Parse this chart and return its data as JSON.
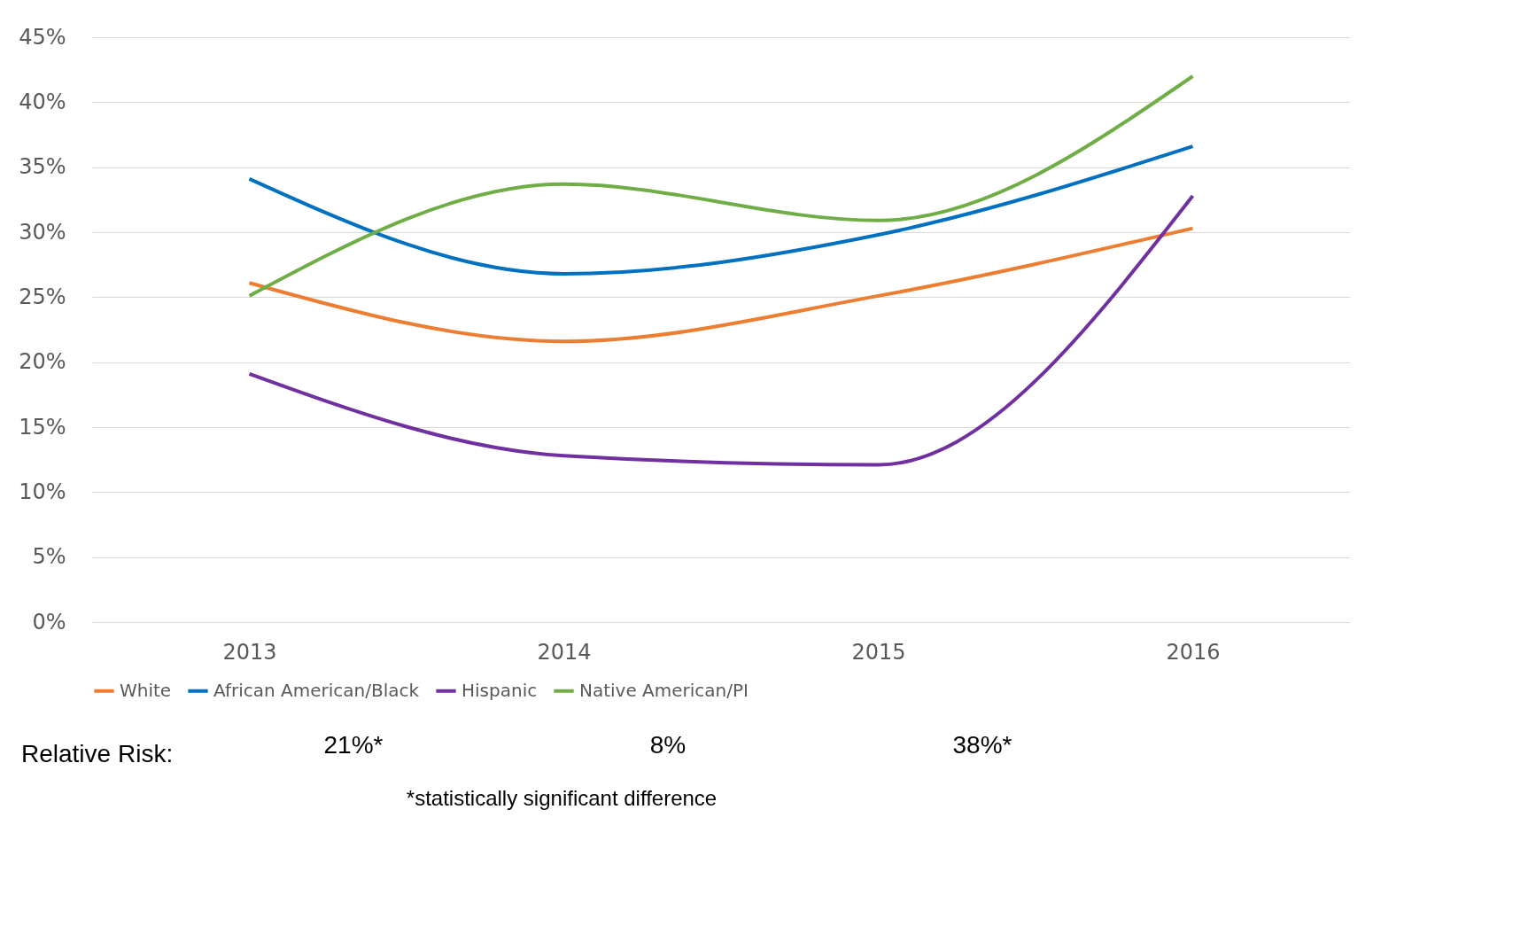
{
  "chart_data": {
    "type": "line",
    "categories": [
      "2013",
      "2014",
      "2015",
      "2016"
    ],
    "series": [
      {
        "name": "White",
        "color": "#ed7d31",
        "values": [
          26.1,
          21.6,
          25.1,
          30.3
        ]
      },
      {
        "name": "African American/Black",
        "color": "#0070c0",
        "values": [
          34.1,
          26.8,
          29.8,
          36.6
        ]
      },
      {
        "name": "Hispanic",
        "color": "#7030a0",
        "values": [
          19.1,
          12.8,
          12.1,
          32.8
        ]
      },
      {
        "name": "Native American/PI",
        "color": "#70ad47",
        "values": [
          25.1,
          33.7,
          30.9,
          42.0
        ]
      }
    ],
    "ylim": [
      0,
      45
    ],
    "yticks": [
      {
        "value": 0,
        "label": "0%"
      },
      {
        "value": 5,
        "label": "5%"
      },
      {
        "value": 10,
        "label": "10%"
      },
      {
        "value": 15,
        "label": "15%"
      },
      {
        "value": 20,
        "label": "20%"
      },
      {
        "value": 25,
        "label": "25%"
      },
      {
        "value": 30,
        "label": "30%"
      },
      {
        "value": 35,
        "label": "35%"
      },
      {
        "value": 40,
        "label": "40%"
      },
      {
        "value": 45,
        "label": "45%"
      }
    ],
    "grid": "y",
    "legend": "bottom",
    "marker": "none",
    "line_style": "solid",
    "annotations": [
      "Relative Risk:",
      "21%*",
      "8%",
      "38%*",
      "*statistically significant difference"
    ]
  }
}
